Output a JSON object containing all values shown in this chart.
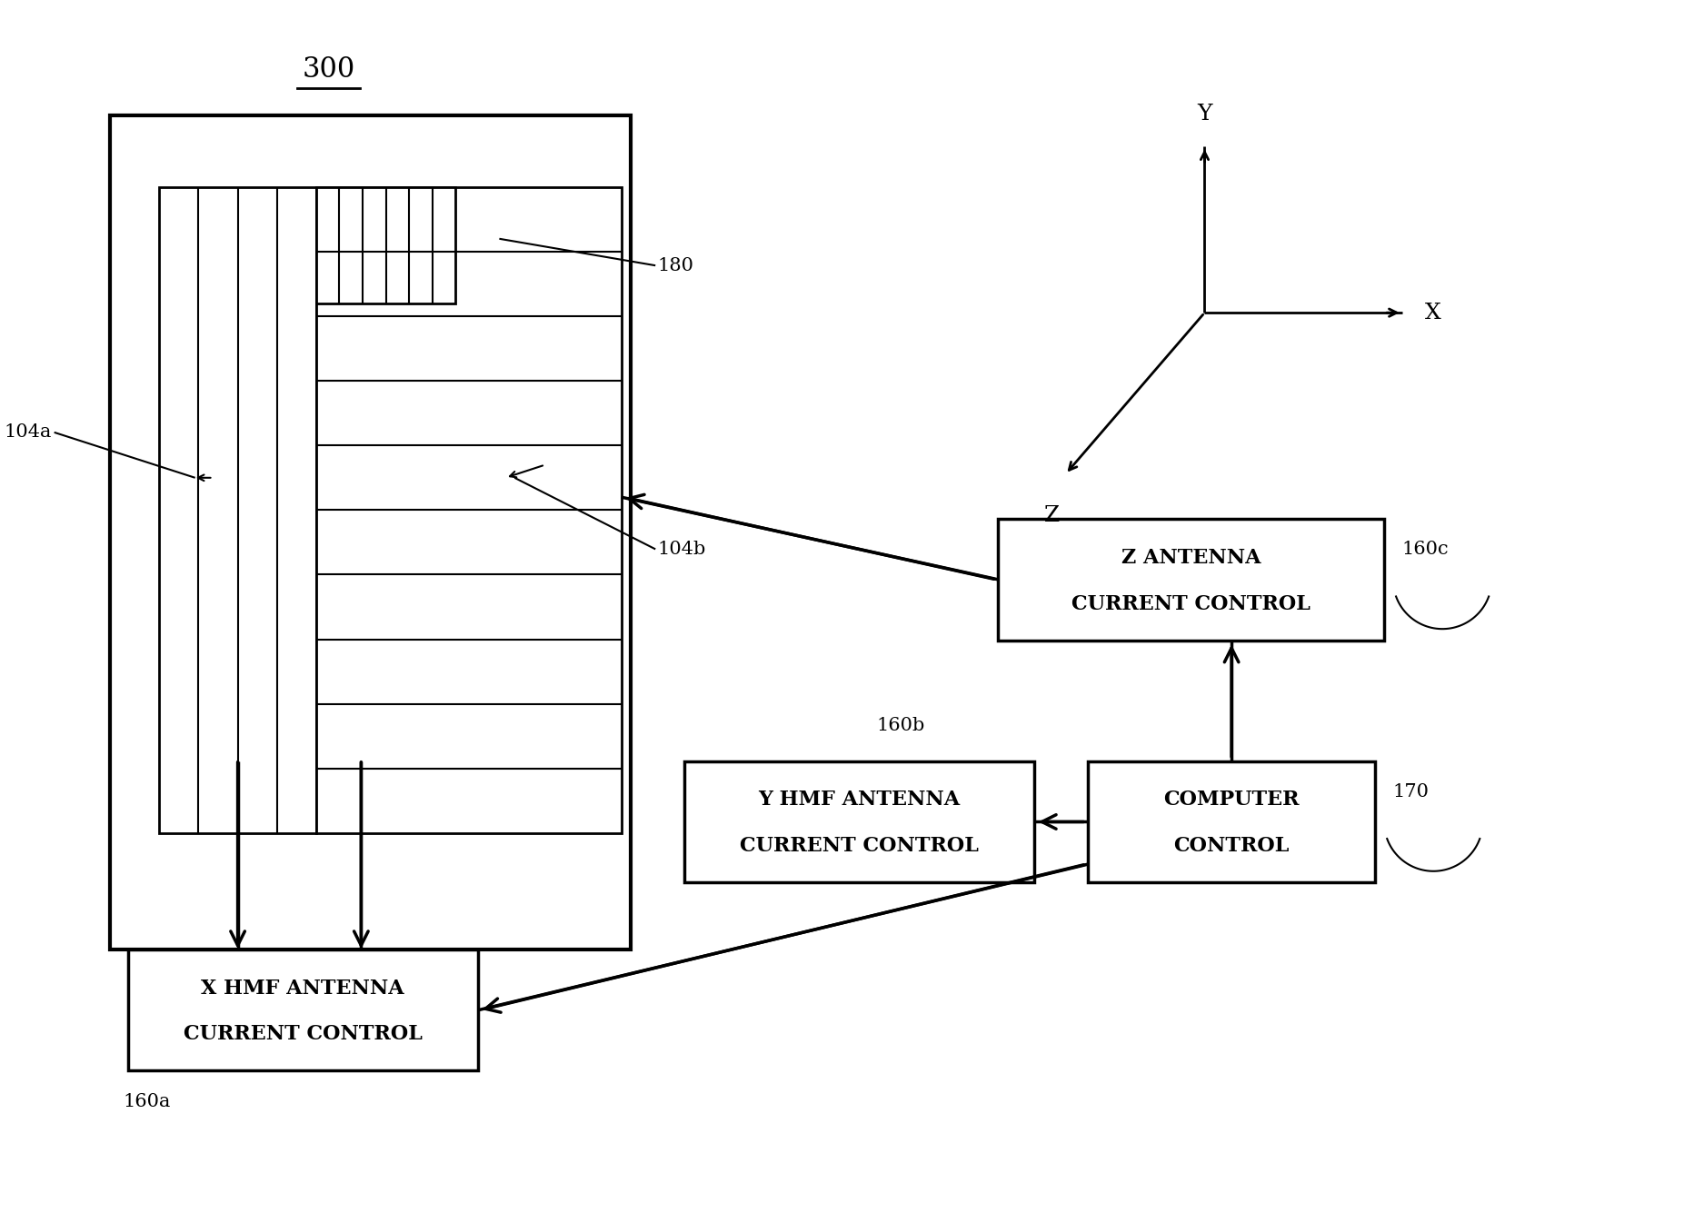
{
  "bg_color": "#ffffff",
  "line_color": "#000000",
  "fig_width": 18.65,
  "fig_height": 13.35,
  "title_300": "300",
  "label_180": "180",
  "label_104a": "104a",
  "label_104b": "104b",
  "label_160a": "160a",
  "label_160b": "160b",
  "label_160c": "160c",
  "label_170": "170",
  "box_z_antenna_line1": "Z ANTENNA",
  "box_z_antenna_line2": "CURRENT CONTROL",
  "box_y_hmf_line1": "Y HMF ANTENNA",
  "box_y_hmf_line2": "CURRENT CONTROL",
  "box_x_hmf_line1": "X HMF ANTENNA",
  "box_x_hmf_line2": "CURRENT CONTROL",
  "box_computer_line1": "COMPUTER",
  "box_computer_line2": "CONTROL",
  "axis_x": "X",
  "axis_y": "Y",
  "axis_z": "Z",
  "n_hlines": 9,
  "n_vlines": 3,
  "n_sv": 5
}
